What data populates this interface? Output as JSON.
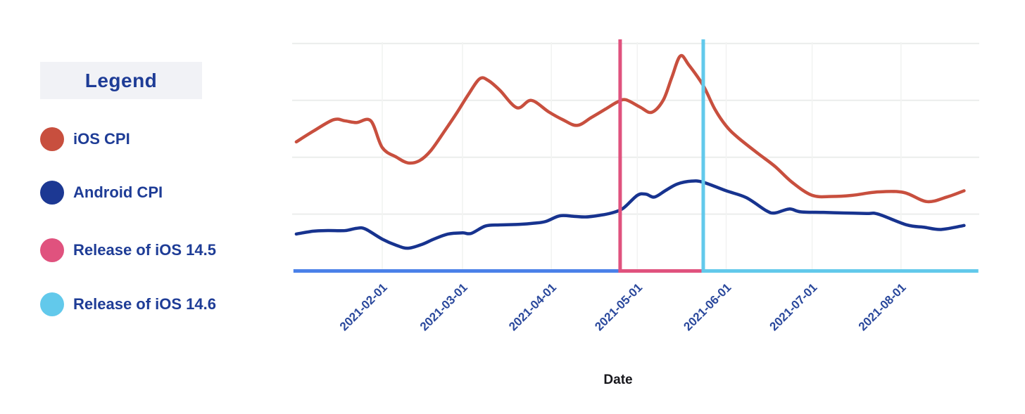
{
  "page": {
    "background": "#ffffff"
  },
  "legend": {
    "title": "Legend",
    "items": [
      {
        "label": "iOS CPI",
        "color": "#c84f3e"
      },
      {
        "label": "Android CPI",
        "color": "#1c3893"
      },
      {
        "label": "Release of iOS 14.5",
        "color": "#e0527e"
      },
      {
        "label": "Release of iOS 14.6",
        "color": "#62c9eb"
      }
    ]
  },
  "chart_data": {
    "type": "line",
    "title": "",
    "xlabel": "Date",
    "ylabel": "",
    "grid": true,
    "legend_position": "left",
    "x_ticks": [
      "2021-02-01",
      "2021-03-01",
      "2021-04-01",
      "2021-05-01",
      "2021-06-01",
      "2021-07-01",
      "2021-08-01"
    ],
    "x_range": [
      "2021-01-01",
      "2021-08-28"
    ],
    "y_range": [
      0,
      4.07
    ],
    "y_gridlines": [
      1,
      2,
      3,
      4
    ],
    "grid_color_h": "#ebedec",
    "grid_color_v": "#f2f3f2",
    "series": [
      {
        "name": "iOS CPI",
        "color": "#c84f3e",
        "points": [
          [
            "2021-01-02",
            2.27
          ],
          [
            "2021-01-08",
            2.46
          ],
          [
            "2021-01-15",
            2.66
          ],
          [
            "2021-01-19",
            2.64
          ],
          [
            "2021-01-23",
            2.61
          ],
          [
            "2021-01-28",
            2.64
          ],
          [
            "2021-02-01",
            2.17
          ],
          [
            "2021-02-06",
            2.0
          ],
          [
            "2021-02-10",
            1.9
          ],
          [
            "2021-02-14",
            1.94
          ],
          [
            "2021-02-18",
            2.12
          ],
          [
            "2021-02-23",
            2.48
          ],
          [
            "2021-02-27",
            2.78
          ],
          [
            "2021-03-03",
            3.1
          ],
          [
            "2021-03-07",
            3.38
          ],
          [
            "2021-03-10",
            3.35
          ],
          [
            "2021-03-14",
            3.18
          ],
          [
            "2021-03-20",
            2.87
          ],
          [
            "2021-03-25",
            3.0
          ],
          [
            "2021-03-31",
            2.8
          ],
          [
            "2021-04-05",
            2.66
          ],
          [
            "2021-04-10",
            2.56
          ],
          [
            "2021-04-15",
            2.7
          ],
          [
            "2021-04-20",
            2.85
          ],
          [
            "2021-04-24",
            2.97
          ],
          [
            "2021-04-27",
            3.01
          ],
          [
            "2021-05-02",
            2.88
          ],
          [
            "2021-05-06",
            2.79
          ],
          [
            "2021-05-10",
            3.0
          ],
          [
            "2021-05-13",
            3.4
          ],
          [
            "2021-05-16",
            3.78
          ],
          [
            "2021-05-19",
            3.62
          ],
          [
            "2021-05-24",
            3.26
          ],
          [
            "2021-05-28",
            2.85
          ],
          [
            "2021-06-01",
            2.55
          ],
          [
            "2021-06-05",
            2.35
          ],
          [
            "2021-06-12",
            2.07
          ],
          [
            "2021-06-18",
            1.84
          ],
          [
            "2021-06-24",
            1.56
          ],
          [
            "2021-07-01",
            1.33
          ],
          [
            "2021-07-08",
            1.31
          ],
          [
            "2021-07-15",
            1.33
          ],
          [
            "2021-07-24",
            1.39
          ],
          [
            "2021-08-02",
            1.38
          ],
          [
            "2021-08-10",
            1.22
          ],
          [
            "2021-08-17",
            1.3
          ],
          [
            "2021-08-23",
            1.41
          ]
        ]
      },
      {
        "name": "Android CPI",
        "color": "#17338f",
        "points": [
          [
            "2021-01-02",
            0.65
          ],
          [
            "2021-01-08",
            0.7
          ],
          [
            "2021-01-13",
            0.71
          ],
          [
            "2021-01-19",
            0.71
          ],
          [
            "2021-01-23",
            0.75
          ],
          [
            "2021-01-26",
            0.74
          ],
          [
            "2021-02-01",
            0.56
          ],
          [
            "2021-02-06",
            0.45
          ],
          [
            "2021-02-10",
            0.4
          ],
          [
            "2021-02-15",
            0.47
          ],
          [
            "2021-02-19",
            0.56
          ],
          [
            "2021-02-24",
            0.65
          ],
          [
            "2021-03-01",
            0.67
          ],
          [
            "2021-03-04",
            0.66
          ],
          [
            "2021-03-09",
            0.79
          ],
          [
            "2021-03-14",
            0.81
          ],
          [
            "2021-03-21",
            0.82
          ],
          [
            "2021-03-26",
            0.84
          ],
          [
            "2021-03-30",
            0.87
          ],
          [
            "2021-04-04",
            0.97
          ],
          [
            "2021-04-09",
            0.96
          ],
          [
            "2021-04-13",
            0.95
          ],
          [
            "2021-04-18",
            0.98
          ],
          [
            "2021-04-22",
            1.02
          ],
          [
            "2021-04-26",
            1.1
          ],
          [
            "2021-05-01",
            1.33
          ],
          [
            "2021-05-04",
            1.35
          ],
          [
            "2021-05-07",
            1.3
          ],
          [
            "2021-05-11",
            1.42
          ],
          [
            "2021-05-15",
            1.53
          ],
          [
            "2021-05-20",
            1.58
          ],
          [
            "2021-05-24",
            1.56
          ],
          [
            "2021-06-01",
            1.41
          ],
          [
            "2021-06-08",
            1.29
          ],
          [
            "2021-06-15",
            1.06
          ],
          [
            "2021-06-18",
            1.02
          ],
          [
            "2021-06-23",
            1.09
          ],
          [
            "2021-06-27",
            1.04
          ],
          [
            "2021-07-05",
            1.03
          ],
          [
            "2021-07-12",
            1.02
          ],
          [
            "2021-07-20",
            1.01
          ],
          [
            "2021-07-24",
            1.0
          ],
          [
            "2021-08-03",
            0.81
          ],
          [
            "2021-08-09",
            0.77
          ],
          [
            "2021-08-15",
            0.73
          ],
          [
            "2021-08-23",
            0.8
          ]
        ]
      }
    ],
    "release_lines": [
      {
        "label": "Release of iOS 14.5",
        "date": "2021-04-25",
        "color": "#e0527e"
      },
      {
        "label": "Release of iOS 14.6",
        "date": "2021-05-24",
        "color": "#62c9eb"
      }
    ],
    "baseline_segments": [
      {
        "start": "2021-01-01",
        "end": "2021-04-25",
        "color": "#4b81e9"
      },
      {
        "start": "2021-04-25",
        "end": "2021-05-24",
        "color": "#e0527e"
      },
      {
        "start": "2021-05-24",
        "end": "2021-08-28",
        "color": "#62c9eb"
      }
    ]
  }
}
